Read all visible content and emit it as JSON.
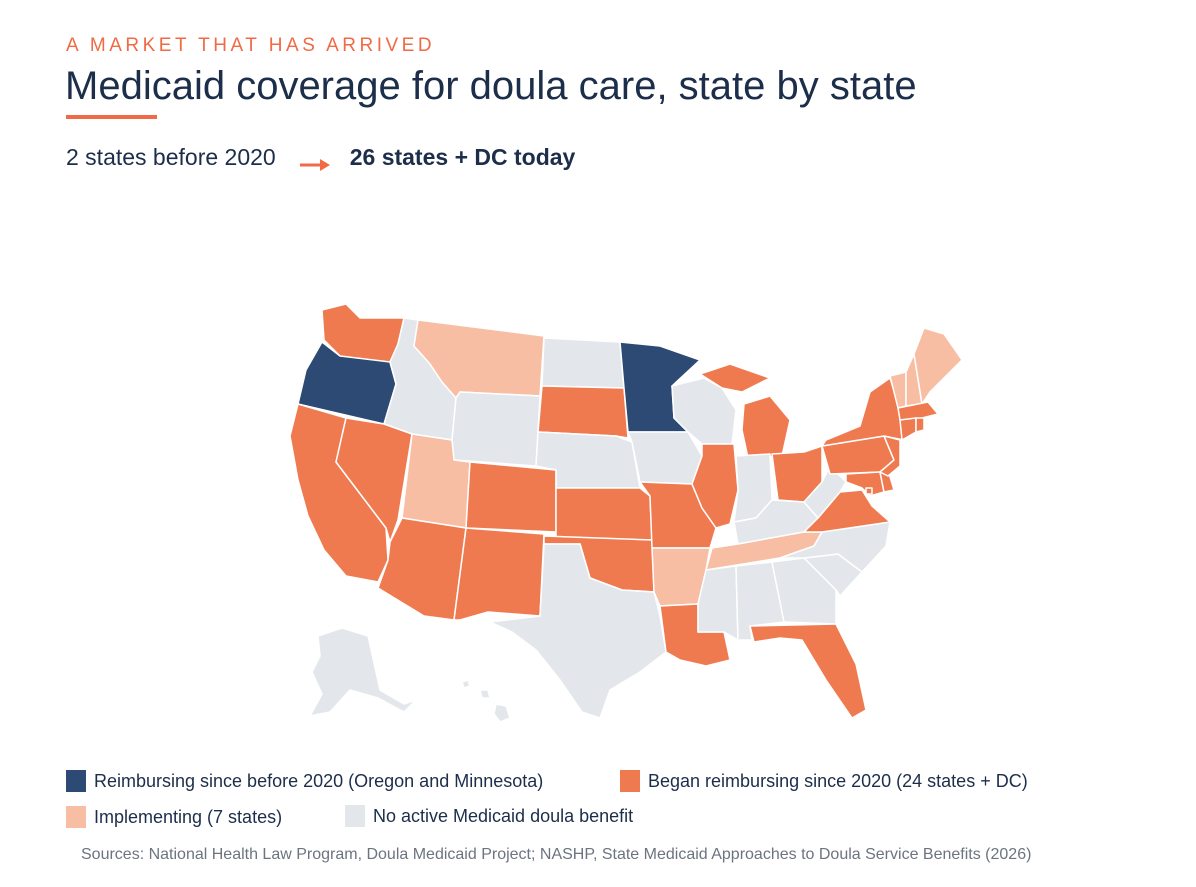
{
  "header": {
    "eyebrow": "A MARKET THAT HAS ARRIVED",
    "title": "Medicaid coverage for doula care, state by state",
    "subtitle_before": "2 states before 2020",
    "subtitle_after": "26 states + DC today"
  },
  "colors": {
    "accent": "#ef6a45",
    "navy": "#2c4a73",
    "orange": "#f07a4f",
    "peach": "#f8bea4",
    "gray": "#e3e6eb",
    "text": "#1c2e4a"
  },
  "legend": {
    "reimbursing_before": "Reimbursing since before 2020 (Oregon and Minnesota)",
    "began_since": "Began reimbursing since 2020 (24 states + DC)",
    "implementing": "Implementing (7 states)",
    "no_benefit": "No active Medicaid doula benefit"
  },
  "sources": "Sources: National Health Law Program, Doula Medicaid Project; NASHP, State Medicaid Approaches to Doula Service Benefits (2026)",
  "map_data": {
    "categories": {
      "before": [
        "Oregon",
        "Minnesota"
      ],
      "since": [
        "Washington",
        "California",
        "Nevada",
        "Arizona",
        "Colorado",
        "New Mexico",
        "South Dakota",
        "Kansas",
        "Oklahoma",
        "Missouri",
        "Louisiana",
        "Illinois",
        "Michigan",
        "Ohio",
        "Florida",
        "Virginia",
        "Maryland",
        "Delaware",
        "New Jersey",
        "Pennsylvania",
        "New York",
        "Connecticut",
        "Rhode Island",
        "Massachusetts",
        "District of Columbia"
      ],
      "implementing": [
        "Montana",
        "Utah",
        "Arkansas",
        "Tennessee",
        "Vermont",
        "New Hampshire",
        "Maine"
      ],
      "none": [
        "Idaho",
        "Wyoming",
        "North Dakota",
        "Nebraska",
        "Texas",
        "Iowa",
        "Wisconsin",
        "Indiana",
        "Kentucky",
        "West Virginia",
        "Mississippi",
        "Alabama",
        "Georgia",
        "South Carolina",
        "North Carolina",
        "Alaska",
        "Hawaii"
      ]
    }
  }
}
